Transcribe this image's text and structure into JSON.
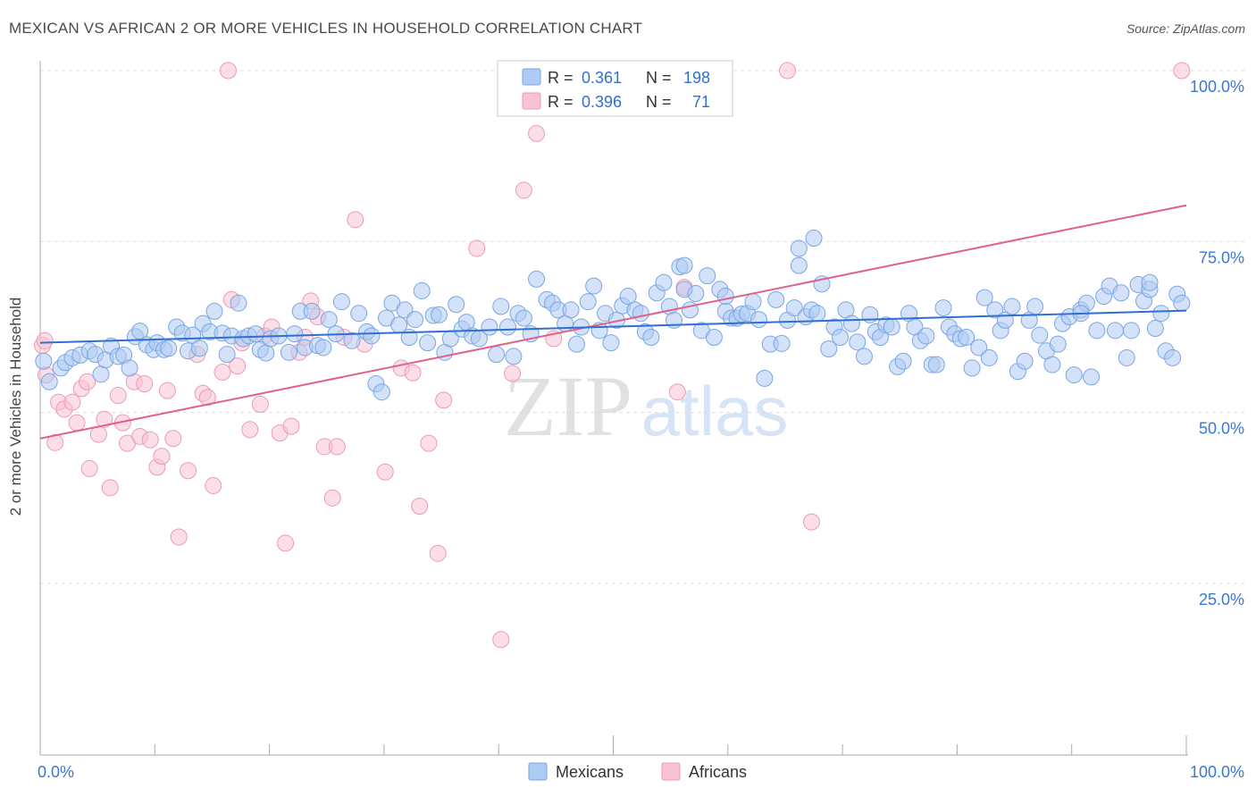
{
  "header": {
    "title": "MEXICAN VS AFRICAN 2 OR MORE VEHICLES IN HOUSEHOLD CORRELATION CHART",
    "source": "Source: ZipAtlas.com"
  },
  "watermark": {
    "zip": "ZIP",
    "atlas": "atlas"
  },
  "legend_top": [
    {
      "r_label": "R =",
      "r_value": "0.361",
      "n_label": "N =",
      "n_value": "198",
      "color": "#6f9fe0"
    },
    {
      "r_label": "R =",
      "r_value": "0.396",
      "n_label": "N =",
      "n_value": "71",
      "color": "#f08fb0"
    }
  ],
  "legend_bottom": [
    {
      "label": "Mexicans",
      "color": "#6f9fe0"
    },
    {
      "label": "Africans",
      "color": "#f08fb0"
    }
  ],
  "colors": {
    "blue_fill": "#aecbf3",
    "blue_stroke": "#7aa6e4",
    "blue_line": "#2f6fd4",
    "pink_fill": "#f8c3d4",
    "pink_stroke": "#ee9ab7",
    "pink_line": "#e0608e",
    "axis_label": "#3a78d4",
    "grid": "#dddddd",
    "value_text": "#2f6fd4"
  },
  "chart_data": {
    "type": "scatter",
    "title": "MEXICAN VS AFRICAN 2 OR MORE VEHICLES IN HOUSEHOLD CORRELATION CHART",
    "xlabel": "",
    "ylabel": "2 or more Vehicles in Household",
    "xlim": [
      0,
      100
    ],
    "ylim": [
      0,
      102
    ],
    "x_tick_labels": [
      "0.0%",
      "100.0%"
    ],
    "y_ticks": [
      25,
      50,
      75,
      100
    ],
    "y_tick_labels": [
      "25.0%",
      "50.0%",
      "75.0%",
      "100.0%"
    ],
    "grid": true,
    "legend_position": "top-center",
    "series": [
      {
        "name": "Mexicans",
        "R": 0.361,
        "N": 198,
        "trend": {
          "x": [
            0,
            100
          ],
          "y": [
            60.2,
            64.9
          ]
        },
        "points": [
          [
            0.3,
            57.5
          ],
          [
            0.8,
            54.5
          ],
          [
            1.8,
            56.5
          ],
          [
            2.2,
            57.3
          ],
          [
            2.8,
            58
          ],
          [
            3.5,
            58.4
          ],
          [
            4.3,
            59
          ],
          [
            4.8,
            58.5
          ],
          [
            5.3,
            55.6
          ],
          [
            5.7,
            57.7
          ],
          [
            6.2,
            59.7
          ],
          [
            6.8,
            58.2
          ],
          [
            7.3,
            58.4
          ],
          [
            7.8,
            56.5
          ],
          [
            8.3,
            61.1
          ],
          [
            8.7,
            61.9
          ],
          [
            9.3,
            59.9
          ],
          [
            9.9,
            59.2
          ],
          [
            10.2,
            60.2
          ],
          [
            10.8,
            59.2
          ],
          [
            11.2,
            59.4
          ],
          [
            11.9,
            62.5
          ],
          [
            12.4,
            61.6
          ],
          [
            12.9,
            59
          ],
          [
            13.3,
            61.3
          ],
          [
            13.9,
            59.4
          ],
          [
            14.2,
            63
          ],
          [
            14.8,
            61.8
          ],
          [
            15.2,
            64.8
          ],
          [
            15.9,
            61.6
          ],
          [
            16.3,
            58.5
          ],
          [
            16.7,
            61.2
          ],
          [
            17.3,
            66
          ],
          [
            17.7,
            60.8
          ],
          [
            18.2,
            61.2
          ],
          [
            18.8,
            61.5
          ],
          [
            19.2,
            59.2
          ],
          [
            19.7,
            58.7
          ],
          [
            20.1,
            60.8
          ],
          [
            20.8,
            61.2
          ],
          [
            21.7,
            58.8
          ],
          [
            22.2,
            61.5
          ],
          [
            22.7,
            64.8
          ],
          [
            23.1,
            59.5
          ],
          [
            23.7,
            64.8
          ],
          [
            24.2,
            59.8
          ],
          [
            24.7,
            59.5
          ],
          [
            25.2,
            63.6
          ],
          [
            25.8,
            61.5
          ],
          [
            26.3,
            66.2
          ],
          [
            27.2,
            60.5
          ],
          [
            27.8,
            64.5
          ],
          [
            28.5,
            61.8
          ],
          [
            28.9,
            61.2
          ],
          [
            29.3,
            54.2
          ],
          [
            29.8,
            53
          ],
          [
            30.2,
            63.8
          ],
          [
            30.7,
            66
          ],
          [
            31.3,
            62.8
          ],
          [
            31.8,
            65
          ],
          [
            32.2,
            61
          ],
          [
            32.7,
            63.6
          ],
          [
            33.3,
            67.8
          ],
          [
            33.8,
            60.2
          ],
          [
            34.3,
            64.2
          ],
          [
            34.8,
            64.3
          ],
          [
            35.3,
            58.8
          ],
          [
            35.8,
            60.8
          ],
          [
            36.3,
            65.8
          ],
          [
            36.8,
            62.2
          ],
          [
            37.2,
            63.2
          ],
          [
            37.7,
            61.2
          ],
          [
            38.3,
            60.8
          ],
          [
            39.2,
            62.5
          ],
          [
            39.8,
            58.5
          ],
          [
            40.2,
            65.5
          ],
          [
            40.8,
            62.5
          ],
          [
            41.3,
            58.2
          ],
          [
            41.7,
            64.5
          ],
          [
            42.2,
            63.8
          ],
          [
            42.8,
            61.5
          ],
          [
            43.3,
            69.5
          ],
          [
            44.2,
            66.5
          ],
          [
            44.7,
            66
          ],
          [
            45.2,
            65
          ],
          [
            45.8,
            63
          ],
          [
            46.3,
            65
          ],
          [
            46.8,
            60
          ],
          [
            47.2,
            62.5
          ],
          [
            47.8,
            66.2
          ],
          [
            48.3,
            68.5
          ],
          [
            48.8,
            62
          ],
          [
            49.3,
            64.5
          ],
          [
            49.8,
            60.2
          ],
          [
            50.3,
            63.5
          ],
          [
            50.8,
            65.6
          ],
          [
            51.3,
            67
          ],
          [
            51.9,
            65
          ],
          [
            52.4,
            64.5
          ],
          [
            52.8,
            61.8
          ],
          [
            53.3,
            61
          ],
          [
            53.8,
            67.5
          ],
          [
            54.4,
            69
          ],
          [
            54.9,
            65.5
          ],
          [
            55.3,
            63.5
          ],
          [
            55.8,
            71.3
          ],
          [
            56.2,
            68
          ],
          [
            56.7,
            65
          ],
          [
            57.2,
            67.4
          ],
          [
            57.7,
            62
          ],
          [
            58.2,
            70
          ],
          [
            58.8,
            61
          ],
          [
            59.3,
            68
          ],
          [
            59.8,
            64.8
          ],
          [
            60.3,
            63.8
          ],
          [
            60.8,
            63.8
          ],
          [
            61.2,
            64.4
          ],
          [
            61.7,
            64.5
          ],
          [
            62.2,
            66.2
          ],
          [
            62.7,
            63.6
          ],
          [
            63.2,
            55
          ],
          [
            63.7,
            60
          ],
          [
            64.2,
            66.5
          ],
          [
            64.7,
            60.1
          ],
          [
            65.2,
            63.5
          ],
          [
            65.8,
            65.3
          ],
          [
            66.2,
            71.5
          ],
          [
            66.8,
            64
          ],
          [
            67.3,
            65
          ],
          [
            67.8,
            64.5
          ],
          [
            68.2,
            68.8
          ],
          [
            68.8,
            59.3
          ],
          [
            69.3,
            62.5
          ],
          [
            69.8,
            61
          ],
          [
            70.3,
            65
          ],
          [
            70.8,
            63
          ],
          [
            71.3,
            60.3
          ],
          [
            71.9,
            58.2
          ],
          [
            72.4,
            64.3
          ],
          [
            72.9,
            61.8
          ],
          [
            73.3,
            61
          ],
          [
            73.8,
            62.8
          ],
          [
            74.3,
            62.5
          ],
          [
            74.8,
            56.7
          ],
          [
            75.3,
            57.5
          ],
          [
            75.8,
            64.5
          ],
          [
            76.3,
            62.5
          ],
          [
            76.8,
            60.5
          ],
          [
            77.3,
            61.2
          ],
          [
            77.8,
            57
          ],
          [
            78.2,
            57
          ],
          [
            78.8,
            65.3
          ],
          [
            79.3,
            62.5
          ],
          [
            79.8,
            61.5
          ],
          [
            80.3,
            60.8
          ],
          [
            80.8,
            61
          ],
          [
            81.3,
            56.5
          ],
          [
            81.9,
            59.5
          ],
          [
            82.4,
            66.8
          ],
          [
            82.8,
            58
          ],
          [
            83.3,
            65
          ],
          [
            83.8,
            62
          ],
          [
            84.2,
            63.5
          ],
          [
            84.8,
            65.5
          ],
          [
            85.3,
            56
          ],
          [
            85.9,
            57.5
          ],
          [
            86.3,
            63.5
          ],
          [
            86.8,
            65.5
          ],
          [
            87.2,
            61.3
          ],
          [
            87.8,
            59
          ],
          [
            88.3,
            57
          ],
          [
            88.8,
            60
          ],
          [
            89.2,
            63
          ],
          [
            89.8,
            64
          ],
          [
            90.2,
            55.5
          ],
          [
            90.8,
            65
          ],
          [
            91.3,
            66
          ],
          [
            91.7,
            55.2
          ],
          [
            92.2,
            62
          ],
          [
            92.8,
            67
          ],
          [
            93.3,
            68.5
          ],
          [
            93.8,
            62
          ],
          [
            94.3,
            67.5
          ],
          [
            94.8,
            58
          ],
          [
            95.2,
            62
          ],
          [
            95.8,
            68.7
          ],
          [
            96.3,
            66.3
          ],
          [
            96.8,
            68
          ],
          [
            97.3,
            62.3
          ],
          [
            97.8,
            64.5
          ],
          [
            98.2,
            59
          ],
          [
            98.8,
            58
          ],
          [
            99.2,
            67.3
          ],
          [
            99.6,
            66
          ],
          [
            56.2,
            71.5
          ],
          [
            66.2,
            74
          ],
          [
            59.8,
            67
          ],
          [
            67.5,
            75.5
          ],
          [
            90.8,
            64.5
          ],
          [
            96.8,
            69
          ]
        ]
      },
      {
        "name": "Africans",
        "R": 0.396,
        "N": 71,
        "trend": {
          "x": [
            0,
            100
          ],
          "y": [
            46.2,
            80.3
          ]
        },
        "points": [
          [
            0.2,
            59.8
          ],
          [
            0.5,
            55.5
          ],
          [
            1.3,
            45.6
          ],
          [
            1.6,
            51.5
          ],
          [
            2.1,
            50.5
          ],
          [
            2.8,
            51.5
          ],
          [
            3.2,
            48.5
          ],
          [
            3.6,
            53.5
          ],
          [
            4.3,
            41.8
          ],
          [
            5.1,
            46.8
          ],
          [
            5.6,
            49
          ],
          [
            6.1,
            39
          ],
          [
            6.8,
            52.5
          ],
          [
            7.2,
            48.5
          ],
          [
            7.6,
            45.5
          ],
          [
            8.2,
            54.5
          ],
          [
            8.7,
            46.5
          ],
          [
            9.1,
            54.2
          ],
          [
            9.6,
            46
          ],
          [
            10.2,
            42
          ],
          [
            10.6,
            43.6
          ],
          [
            11.1,
            53.2
          ],
          [
            11.6,
            46.2
          ],
          [
            12.1,
            31.8
          ],
          [
            12.9,
            41.5
          ],
          [
            13.7,
            58.5
          ],
          [
            14.2,
            52.8
          ],
          [
            14.6,
            52.2
          ],
          [
            15.1,
            39.3
          ],
          [
            15.9,
            55.9
          ],
          [
            16.4,
            100
          ],
          [
            16.7,
            66.5
          ],
          [
            17.2,
            56.8
          ],
          [
            17.6,
            60.2
          ],
          [
            18.3,
            47.5
          ],
          [
            19.2,
            51.2
          ],
          [
            19.6,
            61.2
          ],
          [
            20.2,
            62.5
          ],
          [
            20.9,
            47
          ],
          [
            21.4,
            30.9
          ],
          [
            21.9,
            48
          ],
          [
            22.6,
            58.8
          ],
          [
            23.1,
            61
          ],
          [
            23.6,
            66.3
          ],
          [
            24.2,
            64
          ],
          [
            24.8,
            45
          ],
          [
            25.5,
            37.5
          ],
          [
            25.9,
            45
          ],
          [
            26.5,
            61
          ],
          [
            27.5,
            78.2
          ],
          [
            28.3,
            60
          ],
          [
            30.1,
            41.3
          ],
          [
            31.5,
            56.5
          ],
          [
            32.5,
            55.8
          ],
          [
            33.1,
            36.3
          ],
          [
            33.9,
            45.5
          ],
          [
            34.7,
            29.4
          ],
          [
            35.2,
            51.8
          ],
          [
            38.1,
            74
          ],
          [
            40.2,
            16.8
          ],
          [
            41.2,
            55.7
          ],
          [
            42.2,
            82.5
          ],
          [
            43.3,
            90.8
          ],
          [
            44.8,
            60.8
          ],
          [
            55.6,
            53
          ],
          [
            56.2,
            68.3
          ],
          [
            65.2,
            100
          ],
          [
            67.3,
            34
          ],
          [
            99.6,
            100
          ],
          [
            0.4,
            60.5
          ],
          [
            4.1,
            54.5
          ]
        ]
      }
    ]
  }
}
